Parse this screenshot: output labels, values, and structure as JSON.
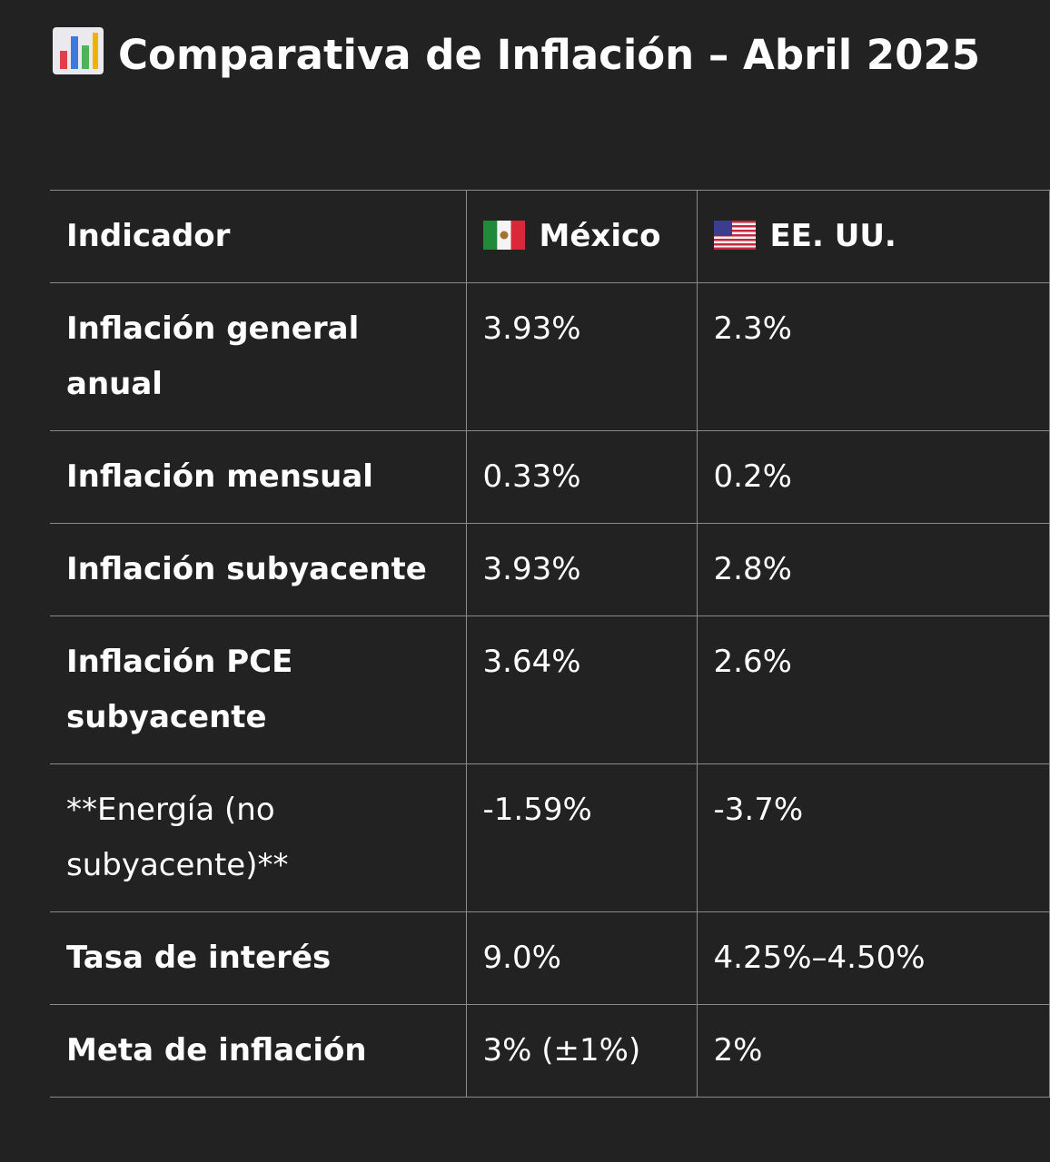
{
  "page": {
    "title": "Comparativa de Inflación – Abril 2025",
    "title_icon": "bar-chart-icon"
  },
  "table": {
    "headers": {
      "indicator": "Indicador",
      "mexico": "México",
      "usa": "EE. UU."
    },
    "header_icons": {
      "mexico": "mexico-flag-icon",
      "usa": "usa-flag-icon"
    },
    "rows": [
      {
        "indicator": "Inflación general anual",
        "mexico": "3.93%",
        "usa": "2.3%"
      },
      {
        "indicator": "Inflación mensual",
        "mexico": "0.33%",
        "usa": "0.2%"
      },
      {
        "indicator": "Inflación subyacente",
        "mexico": "3.93%",
        "usa": "2.8%"
      },
      {
        "indicator": "Inflación PCE subyacente",
        "mexico": "3.64%",
        "usa": "2.6%"
      },
      {
        "indicator": "**Energía (no subyacente)**",
        "mexico": "-1.59%",
        "usa": "-3.7%"
      },
      {
        "indicator": "Tasa de interés",
        "mexico": "9.0%",
        "usa": "4.25%–4.50%"
      },
      {
        "indicator": "Meta de inflación",
        "mexico": "3% (±1%)",
        "usa": "2%"
      }
    ]
  },
  "colors": {
    "background": "#222222",
    "text": "#ffffff",
    "border": "#8a8a8a"
  }
}
